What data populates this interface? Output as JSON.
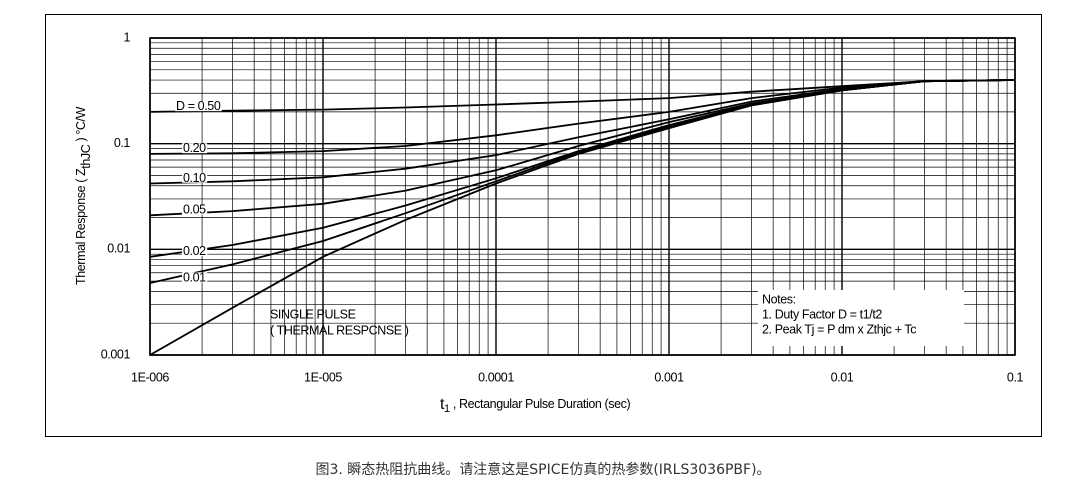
{
  "chart_data": {
    "type": "line",
    "ylabel": {
      "text": "Thermal Response ( Z",
      "subscript": "thJC",
      "after": " ) °C/W"
    },
    "xlabel": {
      "text": "t",
      "subscript": "1",
      "after": " , Rectangular Pulse Duration (sec)"
    },
    "x": [
      1e-06,
      3e-06,
      1e-05,
      3e-05,
      0.0001,
      0.0003,
      0.001,
      0.003,
      0.01,
      0.03,
      0.1
    ],
    "series": [
      {
        "name": "D = 0.50",
        "color": "#000000",
        "values": [
          0.2,
          0.205,
          0.21,
          0.22,
          0.235,
          0.25,
          0.27,
          0.31,
          0.35,
          0.39,
          0.4
        ]
      },
      {
        "name": "0.20",
        "color": "#000000",
        "values": [
          0.08,
          0.081,
          0.085,
          0.095,
          0.12,
          0.155,
          0.2,
          0.27,
          0.34,
          0.39,
          0.4
        ]
      },
      {
        "name": "0.10",
        "color": "#000000",
        "values": [
          0.042,
          0.044,
          0.048,
          0.058,
          0.078,
          0.115,
          0.17,
          0.25,
          0.33,
          0.39,
          0.4
        ]
      },
      {
        "name": "0.05",
        "color": "#000000",
        "values": [
          0.021,
          0.023,
          0.027,
          0.036,
          0.056,
          0.095,
          0.16,
          0.24,
          0.32,
          0.39,
          0.4
        ]
      },
      {
        "name": "0.02",
        "color": "#000000",
        "values": [
          0.0085,
          0.011,
          0.016,
          0.026,
          0.047,
          0.085,
          0.15,
          0.235,
          0.32,
          0.39,
          0.4
        ]
      },
      {
        "name": "0.01",
        "color": "#000000",
        "values": [
          0.0048,
          0.0072,
          0.012,
          0.022,
          0.044,
          0.083,
          0.145,
          0.23,
          0.32,
          0.39,
          0.4
        ]
      },
      {
        "name": "SINGLE PULSE",
        "color": "#000000",
        "values": [
          0.001,
          0.0028,
          0.0085,
          0.019,
          0.042,
          0.08,
          0.14,
          0.23,
          0.32,
          0.39,
          0.4
        ]
      }
    ],
    "single_pulse_note": "( THERMAL RESPCNSE )",
    "notes": [
      "Notes:",
      "1. Duty Factor D = t1/t2",
      "2. Peak Tj = P dm x Zthjc + Tc"
    ],
    "xlog": true,
    "ylog": true,
    "grid": true,
    "minor_grid": true,
    "xlim": [
      1e-06,
      0.1
    ],
    "xticks": [
      {
        "value": 1e-06,
        "label": "1E-006"
      },
      {
        "value": 1e-05,
        "label": "1E-005"
      },
      0.0001,
      0.001,
      0.01,
      0.1
    ],
    "ylim": [
      0.001,
      1
    ],
    "yticks": [
      0.001,
      0.01,
      0.1,
      1
    ]
  },
  "caption": "图3. 瞬态热阻抗曲线。请注意这是SPICE仿真的热参数(IRLS3036PBF)。"
}
